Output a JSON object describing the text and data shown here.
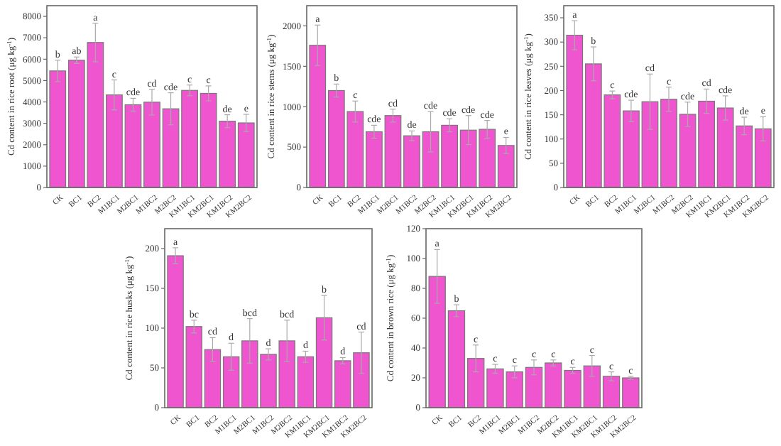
{
  "chart_data": [
    {
      "type": "bar",
      "ylabel": "Cd content in rice root (μg kg$^{-1}$)",
      "categories": [
        "CK",
        "BC1",
        "BC2",
        "M1BC1",
        "M2BC1",
        "M1BC2",
        "M2BC2",
        "KM1BC1",
        "KM2BC1",
        "KM1BC2",
        "KM2BC2"
      ],
      "color": "#ef55cf",
      "values": [
        5450,
        5950,
        6780,
        4330,
        3870,
        3990,
        3680,
        4540,
        4400,
        3100,
        3020
      ],
      "errors": [
        500,
        150,
        900,
        700,
        300,
        600,
        750,
        250,
        350,
        300,
        400
      ],
      "value_labels": [
        "b",
        "ab",
        "a",
        "c",
        "cde",
        "cd",
        "cde",
        "c",
        "c",
        "de",
        "e"
      ],
      "ylim": [
        0,
        8500
      ],
      "yticks": [
        0,
        1000,
        2000,
        3000,
        4000,
        5000,
        6000,
        7000,
        8000
      ]
    },
    {
      "type": "bar",
      "ylabel": "Cd content in rice stems (μg kg$^{-1}$)",
      "categories": [
        "CK",
        "BC1",
        "BC2",
        "M1BC1",
        "M2BC1",
        "M1BC2",
        "M2BC2",
        "KM1BC1",
        "KM2BC1",
        "KM1BC2",
        "KM2BC2"
      ],
      "color": "#ef55cf",
      "values": [
        1760,
        1200,
        940,
        690,
        890,
        640,
        690,
        770,
        710,
        720,
        520
      ],
      "errors": [
        250,
        80,
        130,
        80,
        80,
        60,
        250,
        80,
        180,
        110,
        100
      ],
      "value_labels": [
        "a",
        "b",
        "c",
        "cde",
        "cd",
        "de",
        "cde",
        "cde",
        "cde",
        "cde",
        "e"
      ],
      "ylim": [
        0,
        2250
      ],
      "yticks": [
        0,
        500,
        1000,
        1500,
        2000
      ]
    },
    {
      "type": "bar",
      "ylabel": "Cd content in rice leaves (μg kg$^{-1}$)",
      "categories": [
        "CK",
        "BC1",
        "BC2",
        "M1BC1",
        "M2BC1",
        "M1BC2",
        "M2BC2",
        "KM1BC1",
        "KM2BC1",
        "KM1BC2",
        "KM2BC2"
      ],
      "color": "#ef55cf",
      "values": [
        314,
        255,
        191,
        158,
        177,
        182,
        151,
        178,
        164,
        127,
        121
      ],
      "errors": [
        30,
        35,
        8,
        22,
        57,
        25,
        25,
        25,
        25,
        18,
        25
      ],
      "value_labels": [
        "a",
        "b",
        "c",
        "cde",
        "cd",
        "c",
        "cde",
        "cd",
        "cde",
        "de",
        "e"
      ],
      "ylim": [
        0,
        375
      ],
      "yticks": [
        0,
        50,
        100,
        150,
        200,
        250,
        300,
        350
      ]
    },
    {
      "type": "bar",
      "ylabel": "Cd content in rice husks (μg kg$^{-1}$)",
      "categories": [
        "CK",
        "BC1",
        "BC2",
        "M1BC1",
        "M2BC1",
        "M1BC2",
        "M2BC2",
        "KM1BC1",
        "KM2BC1",
        "KM1BC2",
        "KM2BC2"
      ],
      "color": "#ef55cf",
      "values": [
        191,
        102,
        73,
        64,
        84,
        67,
        84,
        64,
        113,
        59,
        69
      ],
      "errors": [
        10,
        8,
        15,
        17,
        28,
        7,
        26,
        7,
        28,
        4,
        26
      ],
      "value_labels": [
        "a",
        "bc",
        "cd",
        "d",
        "bcd",
        "d",
        "bcd",
        "d",
        "b",
        "d",
        "cd"
      ],
      "ylim": [
        0,
        225
      ],
      "yticks": [
        0,
        50,
        100,
        150,
        200
      ]
    },
    {
      "type": "bar",
      "ylabel": "Cd content in brown rice (μg kg$^{-1}$)",
      "categories": [
        "CK",
        "BC1",
        "BC2",
        "M1BC1",
        "M2BC1",
        "M1BC2",
        "M2BC2",
        "KM1BC1",
        "KM2BC1",
        "KM1BC2",
        "KM2BC2"
      ],
      "color": "#ef55cf",
      "values": [
        88,
        65,
        33,
        26,
        24,
        27,
        30,
        25,
        28,
        21,
        20
      ],
      "errors": [
        18,
        4,
        9,
        3,
        4,
        5,
        2,
        2,
        7,
        3,
        1
      ],
      "value_labels": [
        "a",
        "b",
        "c",
        "c",
        "c",
        "c",
        "c",
        "c",
        "c",
        "c",
        "c"
      ],
      "ylim": [
        0,
        120
      ],
      "yticks": [
        0,
        20,
        40,
        60,
        80,
        100,
        120
      ]
    }
  ]
}
